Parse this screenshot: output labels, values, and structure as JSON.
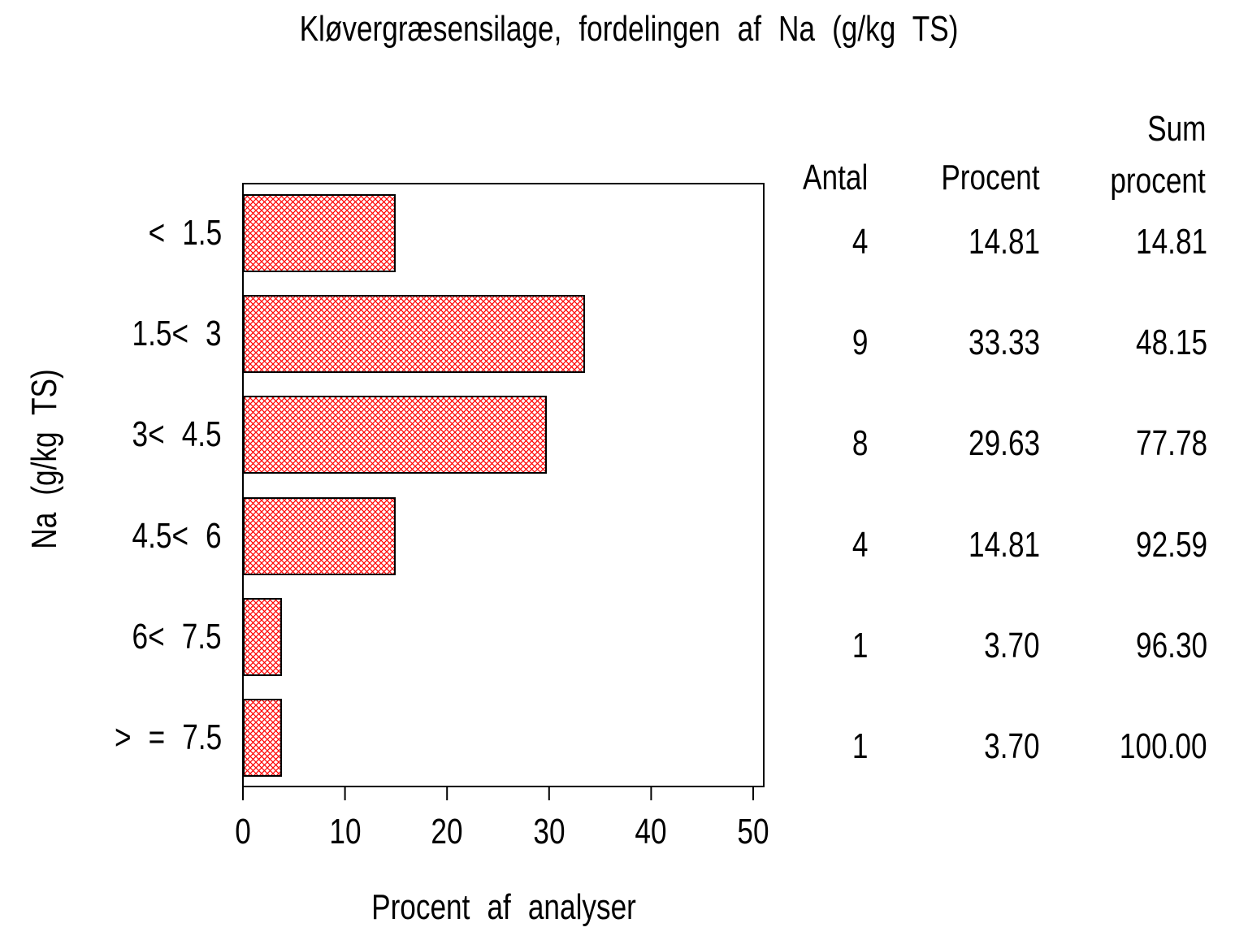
{
  "title": "Kløvergræsensilage, fordelingen af Na (g/kg TS)",
  "chart_data": {
    "type": "bar",
    "orientation": "horizontal",
    "title": "Kløvergræsensilage, fordelingen af Na (g/kg TS)",
    "categories": [
      "< 1.5",
      "1.5< 3",
      "3< 4.5",
      "4.5< 6",
      "6< 7.5",
      "> = 7.5"
    ],
    "values": [
      14.81,
      33.33,
      29.63,
      14.81,
      3.7,
      3.7
    ],
    "xlabel": "Procent af analyser",
    "ylabel": "Na (g/kg TS)",
    "xlim": [
      0,
      50
    ],
    "xticks": [
      "0",
      "10",
      "20",
      "30",
      "40",
      "50"
    ],
    "grid": false,
    "legend": "none",
    "bar_fill": "crosshatch",
    "hatch_color": "#ff0000",
    "bar_border_color": "#000000",
    "frame_color": "#000000"
  },
  "table": {
    "header_antal": "Antal",
    "header_procent": "Procent",
    "header_sum_line1": "Sum",
    "header_sum_line2": "procent",
    "rows": [
      {
        "antal": "4",
        "procent": "14.81",
        "sum": "14.81"
      },
      {
        "antal": "9",
        "procent": "33.33",
        "sum": "48.15"
      },
      {
        "antal": "8",
        "procent": "29.63",
        "sum": "77.78"
      },
      {
        "antal": "4",
        "procent": "14.81",
        "sum": "92.59"
      },
      {
        "antal": "1",
        "procent": "3.70",
        "sum": "96.30"
      },
      {
        "antal": "1",
        "procent": "3.70",
        "sum": "100.00"
      }
    ]
  }
}
